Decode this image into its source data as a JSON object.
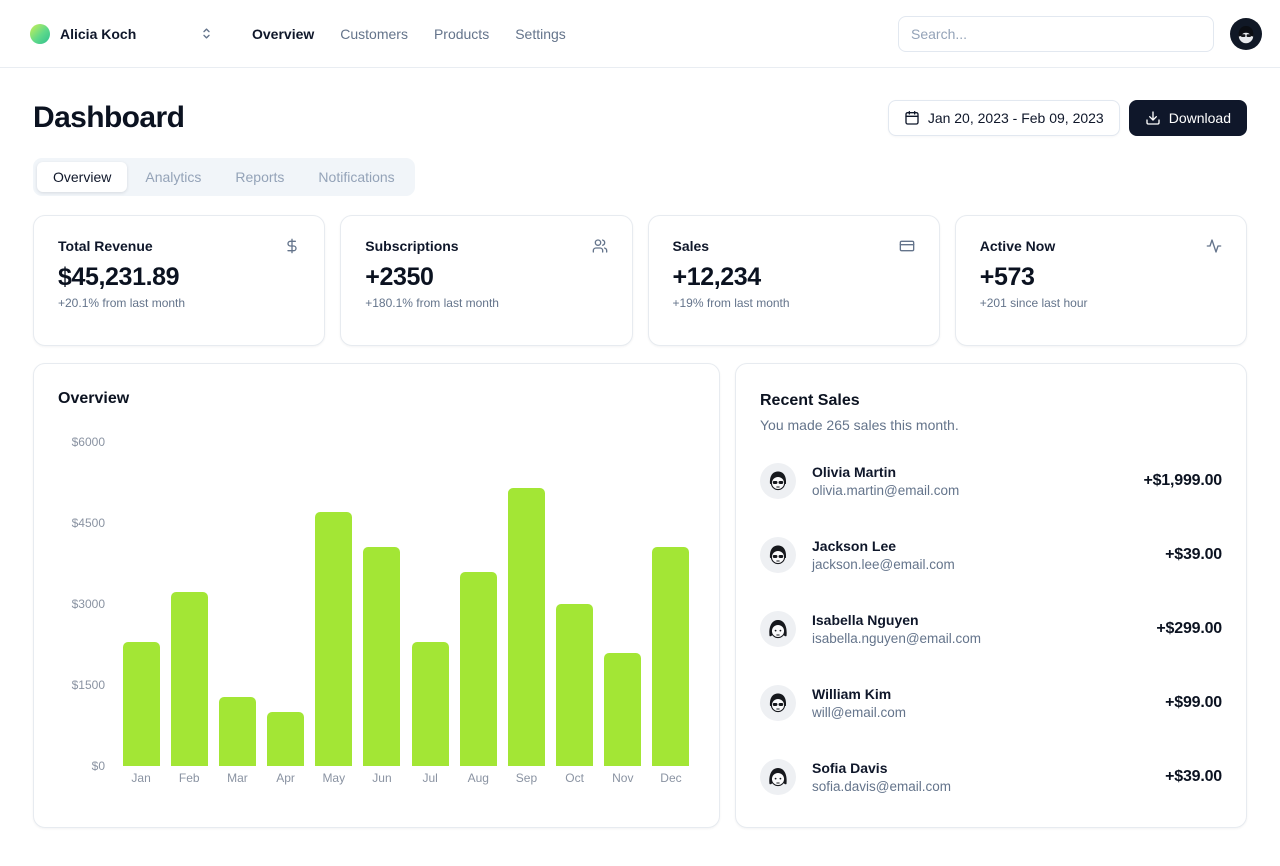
{
  "nav": {
    "team_name": "Alicia Koch",
    "search_placeholder": "Search...",
    "links": [
      {
        "label": "Overview",
        "active": true
      },
      {
        "label": "Customers",
        "active": false
      },
      {
        "label": "Products",
        "active": false
      },
      {
        "label": "Settings",
        "active": false
      }
    ]
  },
  "header": {
    "title": "Dashboard",
    "date_range": "Jan 20, 2023 - Feb 09, 2023",
    "download_label": "Download"
  },
  "tabs": [
    {
      "label": "Overview",
      "active": true
    },
    {
      "label": "Analytics",
      "active": false
    },
    {
      "label": "Reports",
      "active": false
    },
    {
      "label": "Notifications",
      "active": false
    }
  ],
  "stats": [
    {
      "title": "Total Revenue",
      "icon": "dollar-sign-icon",
      "value": "$45,231.89",
      "change": "+20.1% from last month"
    },
    {
      "title": "Subscriptions",
      "icon": "users-icon",
      "value": "+2350",
      "change": "+180.1% from last month"
    },
    {
      "title": "Sales",
      "icon": "credit-card-icon",
      "value": "+12,234",
      "change": "+19% from last month"
    },
    {
      "title": "Active Now",
      "icon": "activity-icon",
      "value": "+573",
      "change": "+201 since last hour"
    }
  ],
  "chart_data": {
    "type": "bar",
    "title": "Overview",
    "categories": [
      "Jan",
      "Feb",
      "Mar",
      "Apr",
      "May",
      "Jun",
      "Jul",
      "Aug",
      "Sep",
      "Oct",
      "Nov",
      "Dec"
    ],
    "values": [
      2300,
      3230,
      1270,
      1000,
      4700,
      4050,
      2300,
      3600,
      5140,
      3000,
      2100,
      4050
    ],
    "xlabel": "",
    "ylabel": "",
    "ylim": [
      0,
      6000
    ],
    "y_ticks": [
      "$6000",
      "$4500",
      "$3000",
      "$1500",
      "$0"
    ],
    "grid": false,
    "legend": false,
    "bar_color": "#a3e635"
  },
  "recent_sales": {
    "title": "Recent Sales",
    "subtitle": "You made 265 sales this month.",
    "items": [
      {
        "name": "Olivia Martin",
        "email": "olivia.martin@email.com",
        "amount": "+$1,999.00"
      },
      {
        "name": "Jackson Lee",
        "email": "jackson.lee@email.com",
        "amount": "+$39.00"
      },
      {
        "name": "Isabella Nguyen",
        "email": "isabella.nguyen@email.com",
        "amount": "+$299.00"
      },
      {
        "name": "William Kim",
        "email": "will@email.com",
        "amount": "+$99.00"
      },
      {
        "name": "Sofia Davis",
        "email": "sofia.davis@email.com",
        "amount": "+$39.00"
      }
    ]
  },
  "colors": {
    "accent_bar": "#a3e635",
    "dark_button": "#0f172a",
    "muted_text": "#64748b",
    "border": "#e2e8f0"
  }
}
